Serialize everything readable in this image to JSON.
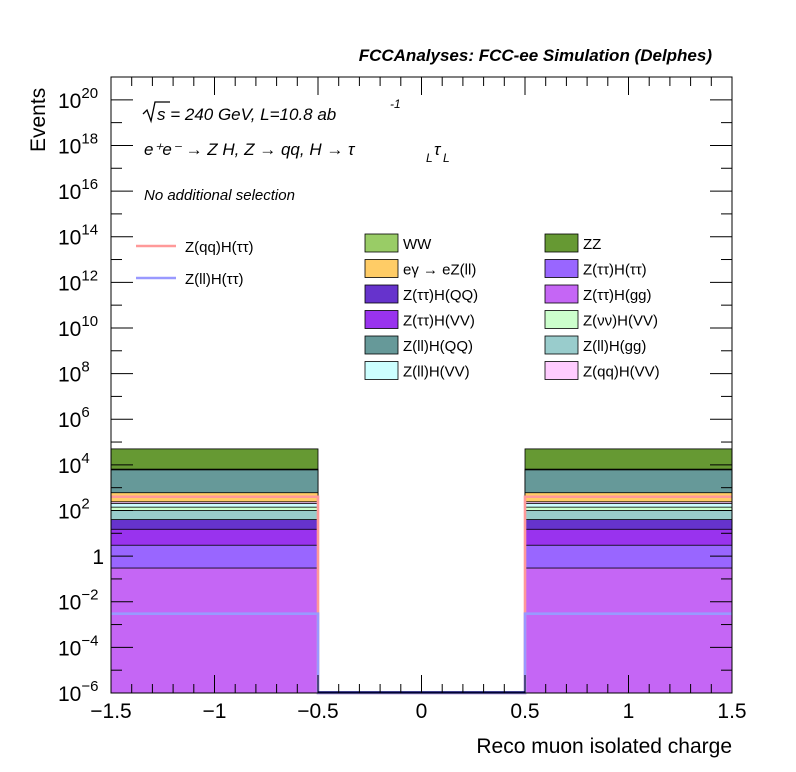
{
  "chart_data": {
    "type": "bar",
    "style": "stacked-histogram-with-overlay-lines",
    "title": "FCCAnalyses: FCC-ee Simulation (Delphes)",
    "xlabel": "Reco muon isolated charge",
    "ylabel": "Events",
    "xlim": [
      -1.5,
      1.5
    ],
    "ylim": [
      1e-06,
      1e+21
    ],
    "yscale": "log",
    "grid": false,
    "legend_placement": "middle",
    "annotations": {
      "energy_prefix": "s",
      "energy_rest": " = 240 GeV, L=10.8 ab",
      "lumi_exp": "-1",
      "process": "e⁺e⁻ → Z H, Z → qq, H → τ",
      "tau_sub": "L",
      "tau2": "τ",
      "tau2_sub": "L",
      "selection": "No additional selection"
    },
    "x_ticks": [
      -1.5,
      -1,
      -0.5,
      0,
      0.5,
      1,
      1.5
    ],
    "x_tick_labels": [
      "−1.5",
      "−1",
      "−0.5",
      "0",
      "0.5",
      "1",
      "1.5"
    ],
    "y_ticks": [
      {
        "value": 1e-06,
        "base": "10",
        "exp": "−6"
      },
      {
        "value": 0.0001,
        "base": "10",
        "exp": "−4"
      },
      {
        "value": 0.01,
        "base": "10",
        "exp": "−2"
      },
      {
        "value": 1,
        "base": "1",
        "exp": ""
      },
      {
        "value": 100.0,
        "base": "10",
        "exp": "2"
      },
      {
        "value": 10000.0,
        "base": "10",
        "exp": "4"
      },
      {
        "value": 1000000.0,
        "base": "10",
        "exp": "6"
      },
      {
        "value": 100000000.0,
        "base": "10",
        "exp": "8"
      },
      {
        "value": 10000000000.0,
        "base": "10",
        "exp": "10"
      },
      {
        "value": 1000000000000.0,
        "base": "10",
        "exp": "12"
      },
      {
        "value": 100000000000000.0,
        "base": "10",
        "exp": "14"
      },
      {
        "value": 1e+16,
        "base": "10",
        "exp": "16"
      },
      {
        "value": 1e+18,
        "base": "10",
        "exp": "18"
      },
      {
        "value": 1e+20,
        "base": "10",
        "exp": "20"
      }
    ],
    "bins": [
      {
        "low": -1.5,
        "high": -0.5
      },
      {
        "low": -0.5,
        "high": 0.5
      },
      {
        "low": 0.5,
        "high": 1.5
      }
    ],
    "stack_layers": [
      {
        "name": "Z(ττ)H(gg)",
        "color": "#c566f5",
        "top": [
          0.3,
          0,
          0.3
        ]
      },
      {
        "name": "Z(ττ)H(ττ)",
        "color": "#9966ff",
        "top": [
          3,
          0,
          3
        ]
      },
      {
        "name": "Z(ττ)H(VV)",
        "color": "#9933ee",
        "top": [
          15,
          0,
          15
        ]
      },
      {
        "name": "Z(ττ)H(QQ)",
        "color": "#6633cc",
        "top": [
          40,
          0,
          40
        ]
      },
      {
        "name": "Z(ll)H(gg)",
        "color": "#99cccc",
        "top": [
          100,
          0,
          100
        ]
      },
      {
        "name": "Z(νν)H(VV)",
        "color": "#ccffcc",
        "top": [
          140,
          0,
          140
        ]
      },
      {
        "name": "Z(ll)H(VV)",
        "color": "#ccffff",
        "top": [
          200,
          0,
          200
        ]
      },
      {
        "name": "Z(qq)H(VV)",
        "color": "#ffccff",
        "top": [
          240,
          0,
          240
        ]
      },
      {
        "name": "eγ → eZ(ll)",
        "color": "#ffcc66",
        "top": [
          600,
          0,
          600
        ]
      },
      {
        "name": "Z(ll)H(QQ)",
        "color": "#669999",
        "top": [
          6000,
          0,
          6000
        ]
      },
      {
        "name": "WW",
        "color": "#99cc66",
        "top": [
          6500,
          0,
          6500
        ]
      },
      {
        "name": "ZZ",
        "color": "#669933",
        "top": [
          50000,
          0,
          50000
        ]
      }
    ],
    "overlay_lines": [
      {
        "name": "Z(qq)H(ττ)",
        "color": "#ff9999",
        "values": [
          400,
          1e-06,
          400
        ]
      },
      {
        "name": "Z(ll)H(ττ)",
        "color": "#9999ff",
        "values": [
          0.003,
          1e-06,
          0.003
        ]
      }
    ],
    "legend_left": [
      "Z(qq)H(ττ)",
      "Z(ll)H(ττ)"
    ],
    "legend_col1": [
      "WW",
      "eγ → eZ(ll)",
      "Z(ττ)H(QQ)",
      "Z(ττ)H(VV)",
      "Z(ll)H(QQ)",
      "Z(ll)H(VV)"
    ],
    "legend_col2": [
      "ZZ",
      "Z(ττ)H(ττ)",
      "Z(ττ)H(gg)",
      "Z(νν)H(VV)",
      "Z(ll)H(gg)",
      "Z(qq)H(VV)"
    ]
  }
}
